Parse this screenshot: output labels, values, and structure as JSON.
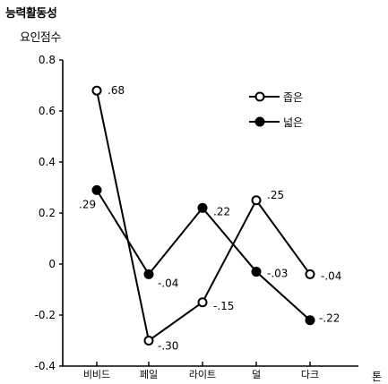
{
  "chart_data": {
    "type": "line",
    "ylabel_line1": "능력활동성",
    "ylabel_line2": "요인점수",
    "xlabel": "톤",
    "categories": [
      "비비드",
      "페일",
      "라이트",
      "덜",
      "다크"
    ],
    "ylim": [
      -0.4,
      0.8
    ],
    "yticks": [
      "0.8",
      "0.6",
      "0.4",
      "0.2",
      "0",
      "-0.2",
      "-0.4"
    ],
    "ytick_values": [
      0.8,
      0.6,
      0.4,
      0.2,
      0,
      -0.2,
      -0.4
    ],
    "grid": false,
    "legend_position": "top-right",
    "series": [
      {
        "name": "좁은",
        "marker": "open-circle",
        "values": [
          0.68,
          -0.3,
          -0.15,
          0.25,
          -0.04
        ],
        "labels": [
          ".68",
          "-.30",
          "-.15",
          ".25",
          "-.04"
        ]
      },
      {
        "name": "넓은",
        "marker": "filled-circle",
        "values": [
          0.29,
          -0.04,
          0.22,
          -0.03,
          -0.22
        ],
        "labels": [
          ".29",
          "-.04",
          ".22",
          "-.03",
          "-.22"
        ]
      }
    ]
  }
}
